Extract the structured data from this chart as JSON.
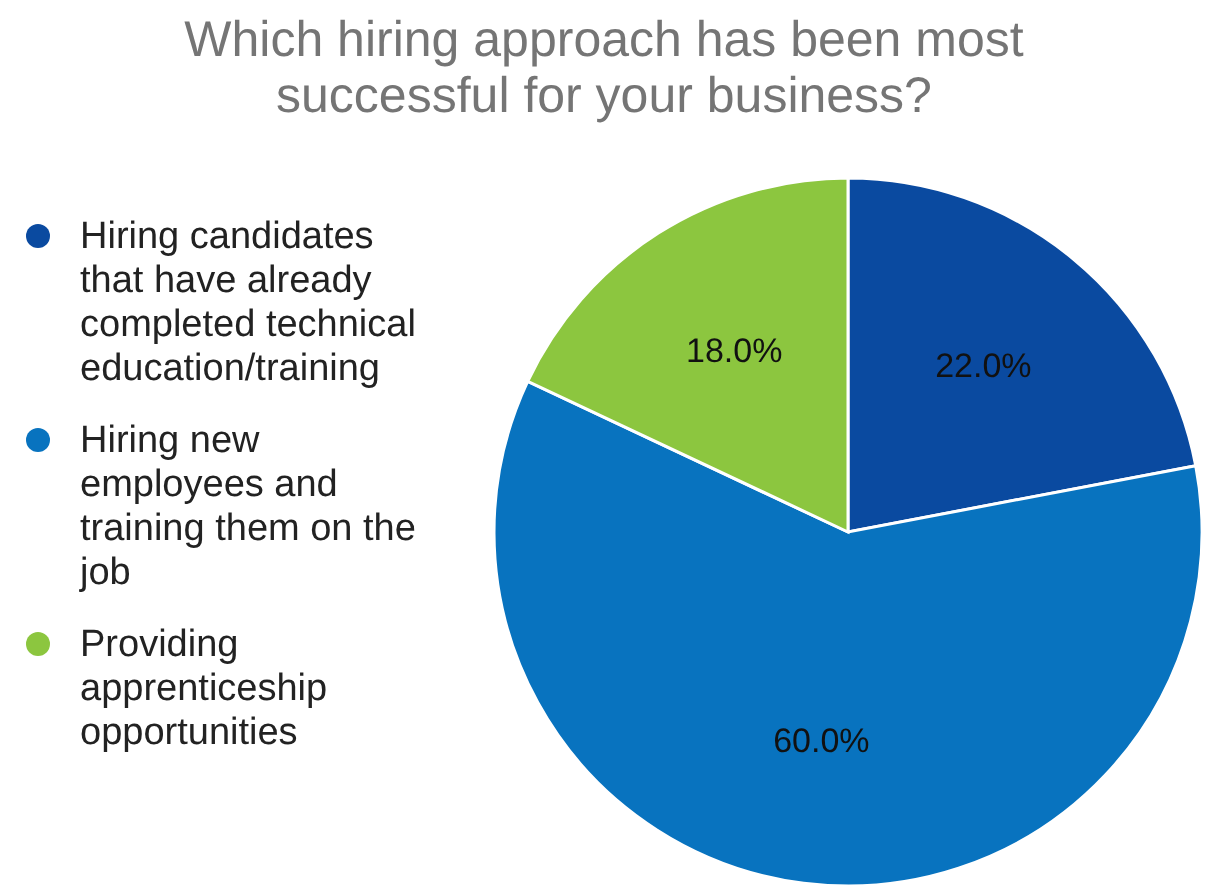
{
  "chart_data": {
    "type": "pie",
    "title": "Which hiring approach has been most successful for your business?",
    "categories": [
      "Hiring candidates that have already completed technical education/training",
      "Hiring new employees and training them on the job",
      "Providing apprenticeship opportunities"
    ],
    "values": [
      22,
      60,
      18
    ],
    "colors": [
      "#0a4aa0",
      "#0873bf",
      "#8cc63f"
    ],
    "value_labels": [
      "22.0%",
      "60.0%",
      "18.0%"
    ],
    "legend": "left"
  }
}
